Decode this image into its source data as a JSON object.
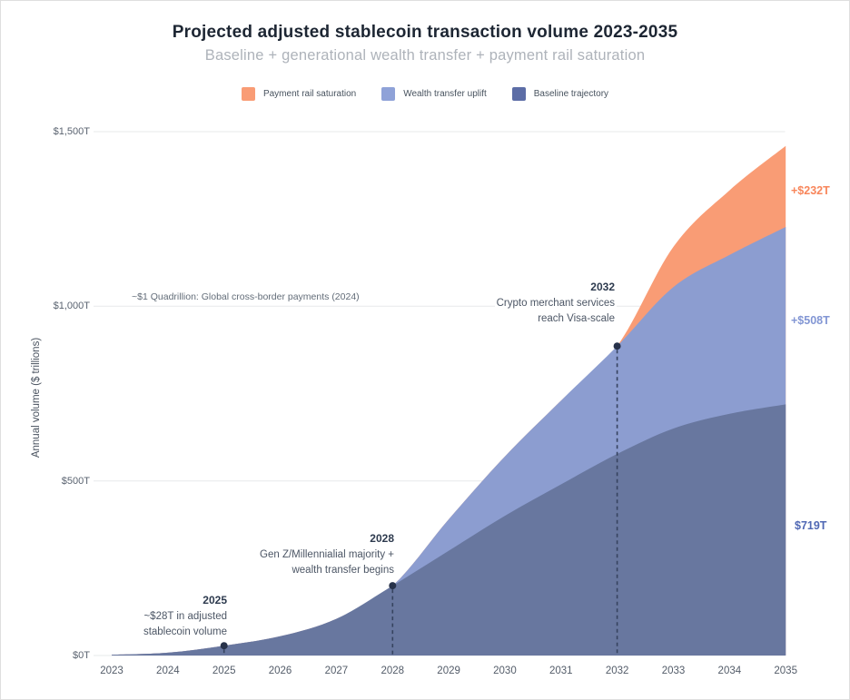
{
  "title": "Projected adjusted stablecoin transaction volume 2023-2035",
  "subtitle": "Baseline + generational wealth transfer + payment rail saturation",
  "legend": {
    "items": [
      {
        "label": "Payment rail saturation",
        "color": "#F99C75"
      },
      {
        "label": "Wealth transfer uplift",
        "color": "#8FA2D8"
      },
      {
        "label": "Baseline trajectory",
        "color": "#5C6DA6"
      }
    ]
  },
  "y_axis_title": "Annual volume ($ trillions)",
  "reference_note": "~$1 Quadrillion: Global cross-border payments (2024)",
  "annotations": [
    {
      "year": "2025",
      "lines": [
        "~$28T in adjusted",
        "stablecoin volume"
      ]
    },
    {
      "year": "2028",
      "lines": [
        "Gen Z/Millennialial majority +",
        "wealth transfer begins"
      ]
    },
    {
      "year": "2032",
      "lines": [
        "Crypto merchant services",
        "reach Visa-scale"
      ]
    }
  ],
  "end_labels": [
    {
      "text": "+$232T",
      "color": "#F8865B"
    },
    {
      "text": "+$508T",
      "color": "#8296D4"
    },
    {
      "text": "$719T",
      "color": "#5068B4"
    }
  ],
  "chart_data": {
    "type": "area",
    "stacked": true,
    "title": "Projected adjusted stablecoin transaction volume 2023-2035",
    "subtitle": "Baseline + generational wealth transfer + payment rail saturation",
    "x": [
      2023,
      2024,
      2025,
      2026,
      2027,
      2028,
      2029,
      2030,
      2031,
      2032,
      2033,
      2034,
      2035
    ],
    "series": [
      {
        "name": "Baseline trajectory",
        "color": "#68779F",
        "values": [
          2,
          8,
          28,
          55,
          105,
          200,
          300,
          400,
          490,
          577,
          650,
          692,
          719
        ]
      },
      {
        "name": "Wealth transfer uplift",
        "color": "#8C9DD0",
        "values": [
          0,
          0,
          0,
          0,
          0,
          0,
          90,
          170,
          240,
          309,
          405,
          455,
          508
        ]
      },
      {
        "name": "Payment rail saturation",
        "color": "#F99C75",
        "values": [
          0,
          0,
          0,
          0,
          0,
          0,
          0,
          0,
          0,
          0,
          115,
          185,
          232
        ]
      }
    ],
    "ylabel": "Annual volume ($ trillions)",
    "ylim": [
      0,
      1500
    ],
    "y_ticks": [
      {
        "value": 0,
        "label": "$0T"
      },
      {
        "value": 500,
        "label": "$500T"
      },
      {
        "value": 1000,
        "label": "$1,000T"
      },
      {
        "value": 1500,
        "label": "$1,500T"
      }
    ],
    "grid": true,
    "legend_position": "top",
    "markers": [
      {
        "year": 2025,
        "note": "~$28T in adjusted stablecoin volume"
      },
      {
        "year": 2028,
        "note": "Gen Z/Millennial majority + wealth transfer begins"
      },
      {
        "year": 2032,
        "note": "Crypto merchant services reach Visa-scale"
      }
    ],
    "reference_line": {
      "value": 1000,
      "label": "~$1 Quadrillion: Global cross-border payments (2024)"
    },
    "end_annotations": [
      {
        "series": "Payment rail saturation",
        "text": "+$232T"
      },
      {
        "series": "Wealth transfer uplift",
        "text": "+$508T"
      },
      {
        "series": "Baseline trajectory",
        "text": "$719T"
      }
    ]
  }
}
